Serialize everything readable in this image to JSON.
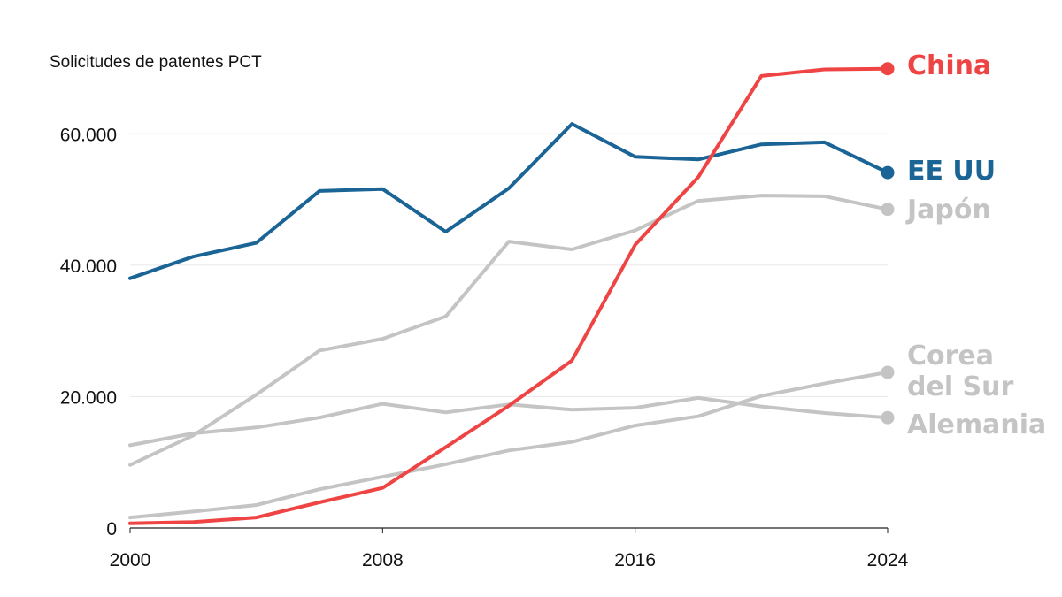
{
  "chart_data": {
    "type": "line",
    "title": "",
    "ylabel": "Solicitudes de patentes PCT",
    "xlabel": "",
    "xlim": [
      2000,
      2024
    ],
    "ylim": [
      0,
      70000
    ],
    "x_ticks": [
      2000,
      2008,
      2016,
      2024
    ],
    "x_tick_labels": [
      "2000",
      "2008",
      "2016",
      "2024"
    ],
    "y_ticks": [
      0,
      20000,
      40000,
      60000
    ],
    "y_tick_labels": [
      "0",
      "20.000",
      "40.000",
      "60.000"
    ],
    "grid": "horizontal",
    "legend": "direct labels at line ends (right)",
    "x": [
      2000,
      2002,
      2004,
      2006,
      2008,
      2010,
      2012,
      2014,
      2016,
      2018,
      2020,
      2022,
      2024
    ],
    "series": [
      {
        "name": "Alemania",
        "color": "#c4c4c4",
        "values": [
          12600,
          14400,
          15300,
          16800,
          18900,
          17600,
          18800,
          18000,
          18300,
          19800,
          18500,
          17500,
          16800
        ]
      },
      {
        "name": "Corea del Sur",
        "color": "#c4c4c4",
        "values": [
          1600,
          2500,
          3500,
          5900,
          7800,
          9700,
          11800,
          13100,
          15600,
          17000,
          20100,
          22000,
          23700
        ]
      },
      {
        "name": "Japón",
        "color": "#c4c4c4",
        "values": [
          9600,
          14100,
          20300,
          27000,
          28800,
          32200,
          43600,
          42400,
          45300,
          49800,
          50600,
          50500,
          48500
        ]
      },
      {
        "name": "EE UU",
        "color": "#1a6496",
        "values": [
          38000,
          41300,
          43400,
          51300,
          51600,
          45100,
          51700,
          61500,
          56500,
          56100,
          58400,
          58700,
          54100
        ]
      },
      {
        "name": "China",
        "color": "#ef4444",
        "values": [
          700,
          900,
          1600,
          3900,
          6100,
          12300,
          18600,
          25500,
          43100,
          53400,
          68800,
          69800,
          69900
        ]
      }
    ],
    "end_labels": [
      {
        "lines": [
          "China"
        ],
        "color": "#ef4444"
      },
      {
        "lines": [
          "EE UU"
        ],
        "color": "#1a6496"
      },
      {
        "lines": [
          "Japón"
        ],
        "color": "#c4c4c4"
      },
      {
        "lines": [
          "Corea",
          "del Sur"
        ],
        "color": "#c4c4c4"
      },
      {
        "lines": [
          "Alemania"
        ],
        "color": "#c4c4c4"
      }
    ]
  }
}
